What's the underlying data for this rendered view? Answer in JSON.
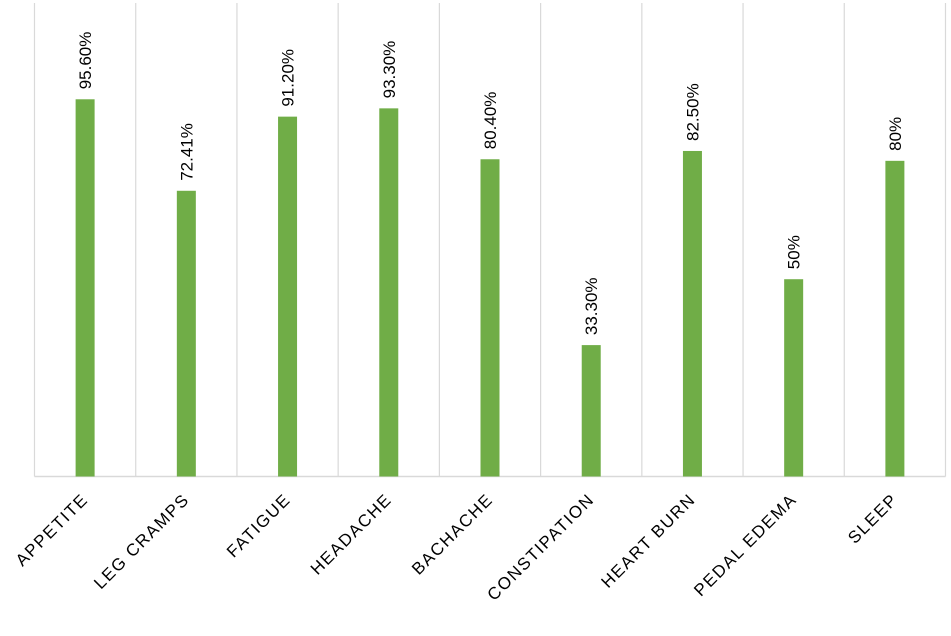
{
  "chart_data": {
    "type": "bar",
    "title": "",
    "xlabel": "",
    "ylabel": "",
    "categories": [
      "APPETITE",
      "LEG CRAMPS",
      "FATIGUE",
      "HEADACHE",
      "BACHACHE",
      "CONSTIPATION",
      "HEART BURN",
      "PEDAL EDEMA",
      "SLEEP"
    ],
    "values": [
      95.6,
      72.41,
      91.2,
      93.3,
      80.4,
      33.3,
      82.5,
      50,
      80
    ],
    "data_labels": [
      "95.60%",
      "72.41%",
      "91.20%",
      "93.30%",
      "80.40%",
      "33.30%",
      "82.50%",
      "50%",
      "80%"
    ],
    "ylim": [
      0,
      120
    ],
    "grid": "vertical category dividers",
    "legend": "none",
    "colors": {
      "bar": "#70ad47",
      "grid": "#d9d9d9",
      "text": "#000000"
    }
  }
}
